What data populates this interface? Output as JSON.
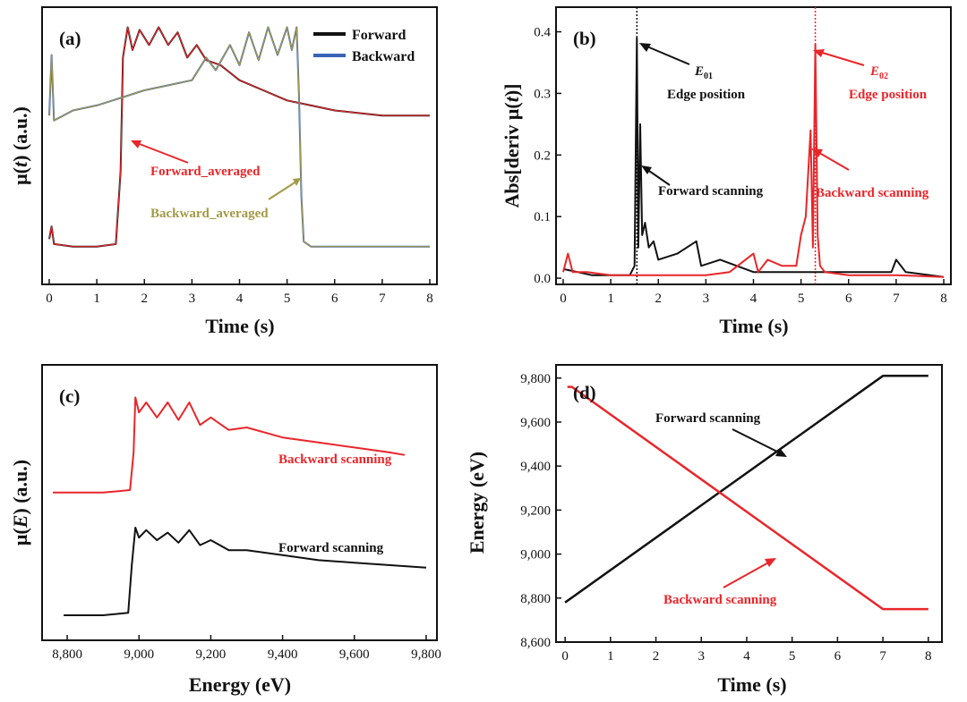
{
  "colors": {
    "forward": "#111111",
    "backward": "#e8262a",
    "backward_blue": "#3a63b8",
    "backward_avg": "#a39a45",
    "forward_avg": "#e8262a"
  },
  "chart_data": [
    {
      "id": "a",
      "type": "line",
      "panel_label": "(a)",
      "xlabel": "Time (s)",
      "ylabel_parts": [
        "μ(",
        "t",
        ") (a.u.)"
      ],
      "xlim": [
        -0.15,
        8.15
      ],
      "ylim": [
        -0.05,
        1.05
      ],
      "xticks": [
        0,
        1,
        2,
        3,
        4,
        5,
        6,
        7,
        8
      ],
      "yticks_shown": false,
      "legend": {
        "placement": "top-right",
        "entries": [
          "Forward",
          "Backward"
        ]
      },
      "annotations": [
        "Forward_averaged",
        "Backward_averaged"
      ],
      "series": [
        {
          "name": "Forward",
          "color_key": "forward",
          "x": [
            0,
            0.05,
            0.1,
            0.5,
            1.0,
            1.4,
            1.5,
            1.55,
            1.65,
            1.75,
            1.9,
            2.1,
            2.3,
            2.5,
            2.7,
            2.9,
            3.1,
            3.3,
            3.6,
            4.0,
            4.5,
            5.0,
            5.5,
            6.0,
            6.5,
            7.0,
            7.5,
            8.0
          ],
          "y": [
            0.13,
            0.18,
            0.11,
            0.1,
            0.1,
            0.11,
            0.4,
            0.85,
            0.97,
            0.88,
            0.96,
            0.9,
            0.97,
            0.9,
            0.95,
            0.85,
            0.9,
            0.84,
            0.82,
            0.76,
            0.72,
            0.68,
            0.66,
            0.64,
            0.63,
            0.62,
            0.62,
            0.62
          ]
        },
        {
          "name": "Backward",
          "color_key": "backward_blue",
          "x": [
            0,
            0.05,
            0.1,
            0.5,
            1.0,
            1.5,
            2.0,
            2.5,
            3.0,
            3.3,
            3.5,
            3.8,
            4.0,
            4.2,
            4.4,
            4.6,
            4.8,
            5.0,
            5.1,
            5.2,
            5.25,
            5.3,
            5.35,
            5.5,
            6.0,
            6.5,
            7.0,
            7.5,
            8.0
          ],
          "y": [
            0.62,
            0.86,
            0.6,
            0.64,
            0.66,
            0.69,
            0.72,
            0.74,
            0.76,
            0.85,
            0.8,
            0.9,
            0.82,
            0.95,
            0.84,
            0.97,
            0.86,
            0.97,
            0.88,
            0.97,
            0.7,
            0.3,
            0.12,
            0.1,
            0.1,
            0.1,
            0.1,
            0.1,
            0.1
          ]
        }
      ]
    },
    {
      "id": "b",
      "type": "line",
      "panel_label": "(b)",
      "xlabel": "Time (s)",
      "ylabel_parts": [
        "Abs[deriv ",
        "μ(",
        "t",
        ")]"
      ],
      "xlim": [
        -0.15,
        8.15
      ],
      "ylim": [
        -0.01,
        0.44
      ],
      "xticks": [
        0,
        1,
        2,
        3,
        4,
        5,
        6,
        7,
        8
      ],
      "yticks": [
        0.0,
        0.1,
        0.2,
        0.3,
        0.4
      ],
      "ytick_labels": [
        "0.0",
        "0.1",
        "0.2",
        "0.3",
        "0.4"
      ],
      "vlines": [
        1.55,
        5.3
      ],
      "annotations": [
        "E01",
        "Edge position",
        "Forward scanning",
        "E02",
        "Edge position",
        "Backward scanning"
      ],
      "series": [
        {
          "name": "Forward scanning",
          "color_key": "forward",
          "x": [
            0,
            0.3,
            0.6,
            1.0,
            1.4,
            1.5,
            1.55,
            1.58,
            1.62,
            1.66,
            1.72,
            1.8,
            1.9,
            2.0,
            2.4,
            2.8,
            2.9,
            3.3,
            4.0,
            5.0,
            6.0,
            6.9,
            7.0,
            7.2,
            8.0
          ],
          "y": [
            0.015,
            0.01,
            0.005,
            0.005,
            0.005,
            0.02,
            0.39,
            0.05,
            0.25,
            0.07,
            0.09,
            0.05,
            0.06,
            0.03,
            0.04,
            0.06,
            0.02,
            0.03,
            0.01,
            0.01,
            0.01,
            0.01,
            0.03,
            0.01,
            0.002
          ]
        },
        {
          "name": "Backward scanning",
          "color_key": "backward",
          "x": [
            0,
            0.1,
            0.2,
            0.5,
            1.0,
            1.5,
            2.0,
            2.5,
            3.0,
            3.5,
            4.0,
            4.1,
            4.3,
            4.6,
            4.9,
            5.0,
            5.1,
            5.2,
            5.25,
            5.3,
            5.35,
            5.4,
            5.5,
            6.0,
            7.0,
            8.0
          ],
          "y": [
            0.01,
            0.04,
            0.01,
            0.01,
            0.005,
            0.005,
            0.005,
            0.005,
            0.005,
            0.01,
            0.04,
            0.01,
            0.03,
            0.02,
            0.02,
            0.07,
            0.1,
            0.24,
            0.05,
            0.38,
            0.07,
            0.02,
            0.01,
            0.005,
            0.005,
            0.002
          ]
        }
      ]
    },
    {
      "id": "c",
      "type": "line",
      "panel_label": "(c)",
      "xlabel": "Energy (eV)",
      "ylabel_parts": [
        "μ(",
        "E",
        ") (a.u.)"
      ],
      "xlim": [
        8730,
        9830
      ],
      "ylim": [
        -0.05,
        1.05
      ],
      "xticks": [
        8800,
        9000,
        9200,
        9400,
        9600,
        9800
      ],
      "xtick_labels": [
        "8,800",
        "9,000",
        "9,200",
        "9,400",
        "9,600",
        "9,800"
      ],
      "yticks_shown": false,
      "annotations": [
        "Backward scanning",
        "Forward scanning"
      ],
      "series": [
        {
          "name": "Backward scanning",
          "color_key": "backward",
          "x": [
            8760,
            8900,
            8975,
            8985,
            8990,
            9000,
            9020,
            9050,
            9080,
            9110,
            9140,
            9170,
            9200,
            9250,
            9300,
            9400,
            9500,
            9600,
            9700,
            9740
          ],
          "y": [
            0.54,
            0.54,
            0.55,
            0.7,
            0.92,
            0.86,
            0.9,
            0.84,
            0.9,
            0.83,
            0.9,
            0.81,
            0.84,
            0.79,
            0.8,
            0.76,
            0.74,
            0.72,
            0.7,
            0.69
          ]
        },
        {
          "name": "Forward scanning",
          "color_key": "forward",
          "x": [
            8790,
            8900,
            8970,
            8980,
            8990,
            9000,
            9020,
            9050,
            9080,
            9110,
            9140,
            9170,
            9200,
            9250,
            9300,
            9400,
            9500,
            9600,
            9700,
            9800
          ],
          "y": [
            0.05,
            0.05,
            0.06,
            0.25,
            0.4,
            0.36,
            0.39,
            0.35,
            0.38,
            0.34,
            0.39,
            0.33,
            0.35,
            0.31,
            0.31,
            0.29,
            0.27,
            0.26,
            0.25,
            0.24
          ]
        }
      ]
    },
    {
      "id": "d",
      "type": "line",
      "panel_label": "(d)",
      "xlabel": "Time (s)",
      "ylabel": "Energy (eV)",
      "xlim": [
        -0.2,
        8.3
      ],
      "ylim": [
        8600,
        9860
      ],
      "xticks": [
        0,
        1,
        2,
        3,
        4,
        5,
        6,
        7,
        8
      ],
      "yticks": [
        8600,
        8800,
        9000,
        9200,
        9400,
        9600,
        9800
      ],
      "ytick_labels": [
        "8,600",
        "8,800",
        "9,000",
        "9,200",
        "9,400",
        "9,600",
        "9,800"
      ],
      "annotations": [
        "Forward scanning",
        "Backward scanning"
      ],
      "series": [
        {
          "name": "Forward scanning",
          "color_key": "forward",
          "x": [
            0,
            7,
            8
          ],
          "y": [
            8780,
            9810,
            9810
          ]
        },
        {
          "name": "Backward scanning",
          "color_key": "backward",
          "x": [
            0.05,
            0.15,
            7,
            8
          ],
          "y": [
            9760,
            9760,
            8750,
            8750
          ]
        }
      ]
    }
  ]
}
